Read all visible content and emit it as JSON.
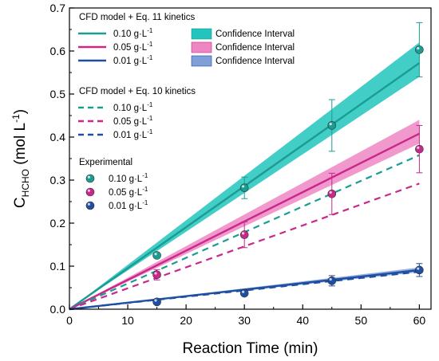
{
  "chart_data": {
    "type": "line",
    "xlabel": "Reaction Time (min)",
    "ylabel_main": "C",
    "ylabel_sub": "HCHO",
    "ylabel_unit": " (mol L",
    "ylabel_sup": "-1",
    "ylabel_close": ")",
    "xlim": [
      0,
      62
    ],
    "ylim": [
      0,
      0.7
    ],
    "xticks": [
      0,
      10,
      20,
      30,
      40,
      50,
      60
    ],
    "yticks": [
      0.0,
      0.1,
      0.2,
      0.3,
      0.4,
      0.5,
      0.6,
      0.7
    ],
    "xtick_labels": [
      "0",
      "10",
      "20",
      "30",
      "40",
      "50",
      "60"
    ],
    "ytick_labels": [
      "0.0",
      "0.1",
      "0.2",
      "0.3",
      "0.4",
      "0.5",
      "0.6",
      "0.7"
    ],
    "colors": {
      "teal": "#1a9c93",
      "magenta": "#c8288a",
      "blue": "#1f4fa3",
      "teal_band": "#22c4bd",
      "magenta_band": "#ee86c4",
      "blue_band": "#7f9fd6"
    },
    "eq11_series": [
      {
        "key": "teal",
        "x": [
          0,
          60
        ],
        "y": [
          0,
          0.572
        ],
        "band_lower": [
          0,
          0.54
        ],
        "band_upper": [
          0,
          0.62
        ]
      },
      {
        "key": "magenta",
        "x": [
          0,
          60
        ],
        "y": [
          0,
          0.408
        ],
        "band_lower": [
          0,
          0.385
        ],
        "band_upper": [
          0,
          0.44
        ]
      },
      {
        "key": "blue",
        "x": [
          0,
          60
        ],
        "y": [
          0,
          0.091
        ],
        "band_lower": [
          0,
          0.086
        ],
        "band_upper": [
          0,
          0.097
        ]
      }
    ],
    "eq10_series": [
      {
        "key": "teal",
        "x": [
          0,
          60
        ],
        "y": [
          0,
          0.358
        ]
      },
      {
        "key": "magenta",
        "x": [
          0,
          60
        ],
        "y": [
          0,
          0.292
        ]
      },
      {
        "key": "blue",
        "x": [
          0,
          60
        ],
        "y": [
          0,
          0.087
        ]
      }
    ],
    "experimental": [
      {
        "key": "teal",
        "x": [
          15,
          30,
          45,
          60
        ],
        "y": [
          0.125,
          0.282,
          0.427,
          0.603
        ],
        "err": [
          0,
          0.025,
          0.06,
          0.063
        ]
      },
      {
        "key": "magenta",
        "x": [
          15,
          30,
          45,
          60
        ],
        "y": [
          0.08,
          0.173,
          0.268,
          0.372
        ],
        "err": [
          0.012,
          0.03,
          0.048,
          0.055
        ]
      },
      {
        "key": "blue",
        "x": [
          15,
          30,
          45,
          60
        ],
        "y": [
          0.017,
          0.037,
          0.066,
          0.091
        ],
        "err": [
          0,
          0,
          0.012,
          0.015
        ]
      }
    ],
    "legend": {
      "group1_title": "CFD model + Eq. 11 kinetics",
      "group2_title": "CFD model + Eq. 10 kinetics",
      "group3_title": "Experimental",
      "conc_labels": [
        "0.10 g·L",
        "0.05 g·L",
        "0.01 g·L"
      ],
      "conc_sup": "-1",
      "ci_label": "Confidence Interval"
    }
  }
}
